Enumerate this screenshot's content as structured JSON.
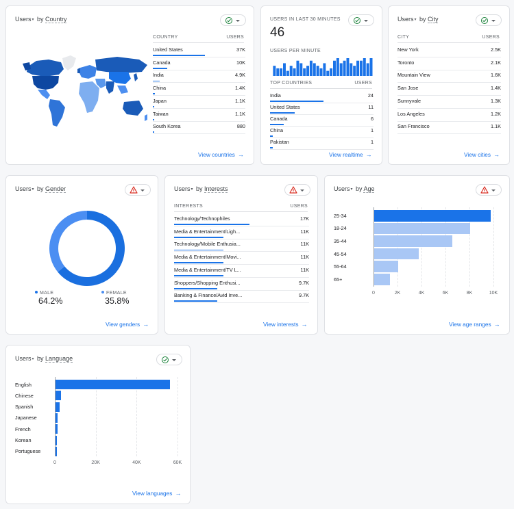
{
  "country": {
    "metric": "Users",
    "dimension": "Country",
    "col_dim": "COUNTRY",
    "col_metric": "USERS",
    "rows": [
      {
        "label": "United States",
        "value": "37K",
        "pct": 1.0
      },
      {
        "label": "Canada",
        "value": "10K",
        "pct": 0.27
      },
      {
        "label": "India",
        "value": "4.9K",
        "pct": 0.13
      },
      {
        "label": "China",
        "value": "1.4K",
        "pct": 0.04
      },
      {
        "label": "Japan",
        "value": "1.1K",
        "pct": 0.03
      },
      {
        "label": "Taiwan",
        "value": "1.1K",
        "pct": 0.03
      },
      {
        "label": "South Korea",
        "value": "880",
        "pct": 0.024
      }
    ],
    "link": "View countries",
    "status": "check-icon"
  },
  "realtime": {
    "label": "USERS IN LAST 30 MINUTES",
    "value": "46",
    "per_minute_label": "USERS PER MINUTE",
    "spark": [
      4,
      3,
      3,
      5,
      2,
      4,
      3,
      6,
      5,
      3,
      4,
      6,
      5,
      4,
      3,
      5,
      2,
      3,
      6,
      7,
      5,
      6,
      7,
      5,
      4,
      6,
      6,
      7,
      5,
      7
    ],
    "col_dim": "TOP COUNTRIES",
    "col_metric": "USERS",
    "rows": [
      {
        "label": "India",
        "value": "24",
        "pct": 1.0
      },
      {
        "label": "United States",
        "value": "11",
        "pct": 0.46
      },
      {
        "label": "Canada",
        "value": "6",
        "pct": 0.25
      },
      {
        "label": "China",
        "value": "1",
        "pct": 0.05
      },
      {
        "label": "Pakistan",
        "value": "1",
        "pct": 0.05
      }
    ],
    "link": "View realtime",
    "status": "check-icon"
  },
  "city": {
    "metric": "Users",
    "dimension": "City",
    "col_dim": "CITY",
    "col_metric": "USERS",
    "rows": [
      {
        "label": "New York",
        "value": "2.5K",
        "pct": 1.0
      },
      {
        "label": "Toronto",
        "value": "2.1K",
        "pct": 0.84
      },
      {
        "label": "Mountain View",
        "value": "1.6K",
        "pct": 0.64
      },
      {
        "label": "San Jose",
        "value": "1.4K",
        "pct": 0.56
      },
      {
        "label": "Sunnyvale",
        "value": "1.3K",
        "pct": 0.52
      },
      {
        "label": "Los Angeles",
        "value": "1.2K",
        "pct": 0.48
      },
      {
        "label": "San Francisco",
        "value": "1.1K",
        "pct": 0.44
      }
    ],
    "link": "View cities",
    "status": "check-icon"
  },
  "gender": {
    "metric": "Users",
    "dimension": "Gender",
    "male_label": "MALE",
    "male_value": "64.2%",
    "female_label": "FEMALE",
    "female_value": "35.8%",
    "male_fraction": 0.642,
    "link": "View genders",
    "status": "warning-icon",
    "colors": {
      "male": "#1a6fdf",
      "female": "#4b8ef2"
    }
  },
  "interests": {
    "metric": "Users",
    "dimension": "Interests",
    "col_dim": "INTERESTS",
    "col_metric": "USERS",
    "rows": [
      {
        "label": "Technology/Technophiles",
        "value": "17K",
        "pct": 1.0
      },
      {
        "label": "Media & Entertainment/Ligh...",
        "value": "11K",
        "pct": 0.65
      },
      {
        "label": "Technology/Mobile Enthusia...",
        "value": "11K",
        "pct": 0.65
      },
      {
        "label": "Media & Entertainment/Movi...",
        "value": "11K",
        "pct": 0.65
      },
      {
        "label": "Media & Entertainment/TV L...",
        "value": "11K",
        "pct": 0.65
      },
      {
        "label": "Shoppers/Shopping Enthusi...",
        "value": "9.7K",
        "pct": 0.57
      },
      {
        "label": "Banking & Finance/Avid Inve...",
        "value": "9.7K",
        "pct": 0.57
      }
    ],
    "link": "View interests",
    "status": "warning-icon"
  },
  "age": {
    "metric": "Users",
    "dimension": "Age",
    "link": "View age ranges",
    "status": "warning-icon"
  },
  "language": {
    "metric": "Users",
    "dimension": "Language",
    "link": "View languages",
    "status": "check-icon"
  },
  "chart_data": [
    {
      "type": "bar",
      "orientation": "horizontal",
      "categories": [
        "25-34",
        "18-24",
        "35-44",
        "45-54",
        "55-64",
        "65+"
      ],
      "values": [
        9700,
        8000,
        6500,
        3700,
        2000,
        1300
      ],
      "xlim": [
        0,
        10000
      ],
      "ticks": [
        "0",
        "2K",
        "4K",
        "6K",
        "8K",
        "10K"
      ],
      "colors": [
        "#1a73e8",
        "#a9c7f5"
      ]
    },
    {
      "type": "bar",
      "orientation": "horizontal",
      "categories": [
        "English",
        "Chinese",
        "Spanish",
        "Japanese",
        "French",
        "Korean",
        "Portuguese"
      ],
      "values": [
        56000,
        2600,
        1900,
        1100,
        900,
        700,
        600
      ],
      "xlim": [
        0,
        60000
      ],
      "ticks": [
        "0",
        "20K",
        "40K",
        "60K"
      ],
      "colors": [
        "#1a73e8"
      ]
    }
  ]
}
